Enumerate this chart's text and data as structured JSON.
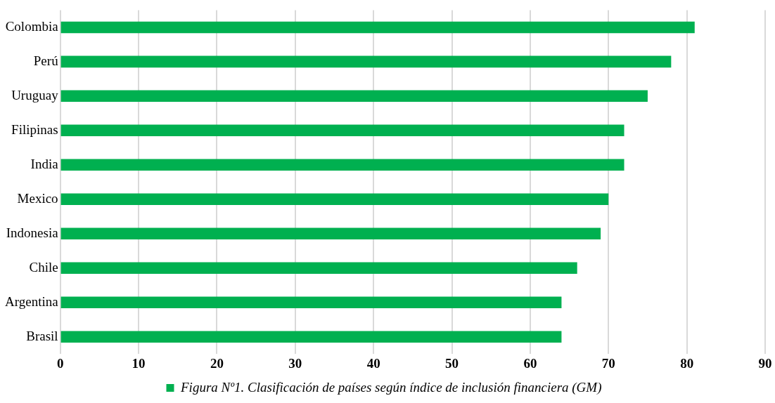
{
  "chart_data": {
    "type": "bar",
    "orientation": "horizontal",
    "categories": [
      "Colombia",
      "Perú",
      "Uruguay",
      "Filipinas",
      "India",
      "Mexico",
      "Indonesia",
      "Chile",
      "Argentina",
      "Brasil"
    ],
    "series": [
      {
        "name": "Figura Nº1. Clasificación de países según índice de inclusión financiera (GM)",
        "color": "#00b050",
        "values": [
          81,
          78,
          75,
          72,
          72,
          70,
          69,
          66,
          64,
          64
        ]
      }
    ],
    "xlim": [
      0,
      90
    ],
    "xticks": [
      0,
      10,
      20,
      30,
      40,
      50,
      60,
      70,
      80,
      90
    ],
    "grid": "x",
    "legend": "bottom"
  }
}
